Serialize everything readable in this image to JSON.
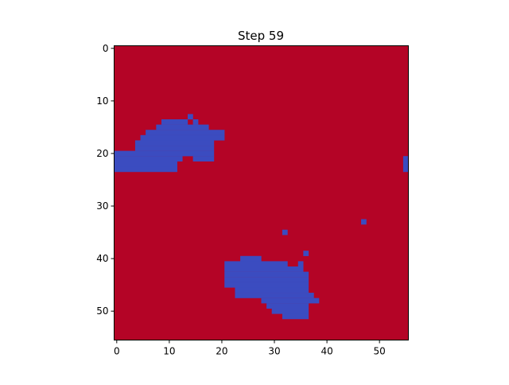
{
  "chart_data": {
    "type": "heatmap",
    "title": "Step 59",
    "xlabel": "",
    "ylabel": "",
    "grid_size": [
      56,
      56
    ],
    "x_range": [
      -0.5,
      55.5
    ],
    "y_range": [
      55.5,
      -0.5
    ],
    "x_ticks": [
      0,
      10,
      20,
      30,
      40,
      50
    ],
    "y_ticks": [
      0,
      10,
      20,
      30,
      40,
      50
    ],
    "grid": false,
    "legend": "none",
    "colors": {
      "background_state": "#b40426",
      "cluster_state": "#3b4cc0"
    },
    "background_value": 1,
    "cluster_value": 0,
    "cluster_cells_by_row": [
      {
        "row": 13,
        "cols": [
          [
            14,
            14
          ]
        ]
      },
      {
        "row": 14,
        "cols": [
          [
            9,
            13
          ],
          [
            15,
            15
          ]
        ]
      },
      {
        "row": 15,
        "cols": [
          [
            8,
            17
          ]
        ]
      },
      {
        "row": 16,
        "cols": [
          [
            6,
            20
          ]
        ]
      },
      {
        "row": 17,
        "cols": [
          [
            5,
            20
          ]
        ]
      },
      {
        "row": 18,
        "cols": [
          [
            4,
            18
          ]
        ]
      },
      {
        "row": 19,
        "cols": [
          [
            4,
            18
          ]
        ]
      },
      {
        "row": 20,
        "cols": [
          [
            0,
            18
          ]
        ]
      },
      {
        "row": 21,
        "cols": [
          [
            0,
            12
          ],
          [
            15,
            18
          ],
          [
            55,
            55
          ]
        ]
      },
      {
        "row": 22,
        "cols": [
          [
            0,
            11
          ],
          [
            55,
            55
          ]
        ]
      },
      {
        "row": 23,
        "cols": [
          [
            0,
            11
          ],
          [
            55,
            55
          ]
        ]
      },
      {
        "row": 33,
        "cols": [
          [
            47,
            47
          ]
        ]
      },
      {
        "row": 35,
        "cols": [
          [
            32,
            32
          ]
        ]
      },
      {
        "row": 39,
        "cols": [
          [
            36,
            36
          ]
        ]
      },
      {
        "row": 40,
        "cols": [
          [
            24,
            27
          ]
        ]
      },
      {
        "row": 41,
        "cols": [
          [
            21,
            32
          ],
          [
            35,
            35
          ]
        ]
      },
      {
        "row": 42,
        "cols": [
          [
            21,
            35
          ]
        ]
      },
      {
        "row": 43,
        "cols": [
          [
            21,
            36
          ]
        ]
      },
      {
        "row": 44,
        "cols": [
          [
            21,
            36
          ]
        ]
      },
      {
        "row": 45,
        "cols": [
          [
            21,
            36
          ]
        ]
      },
      {
        "row": 46,
        "cols": [
          [
            23,
            36
          ]
        ]
      },
      {
        "row": 47,
        "cols": [
          [
            23,
            37
          ]
        ]
      },
      {
        "row": 48,
        "cols": [
          [
            28,
            38
          ]
        ]
      },
      {
        "row": 49,
        "cols": [
          [
            29,
            36
          ]
        ]
      },
      {
        "row": 50,
        "cols": [
          [
            30,
            36
          ]
        ]
      },
      {
        "row": 51,
        "cols": [
          [
            32,
            36
          ]
        ]
      }
    ]
  }
}
